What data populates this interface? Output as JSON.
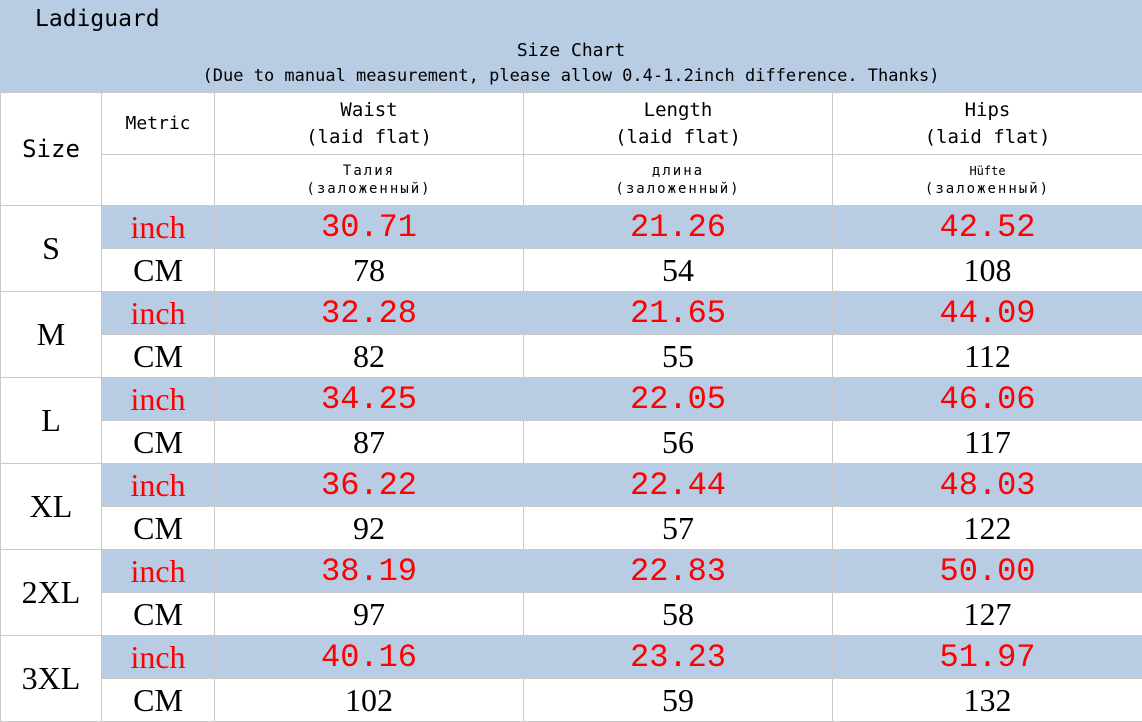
{
  "brand": "Ladiguard",
  "title": "Size Chart",
  "note": "(Due to manual measurement, please allow 0.4-1.2inch difference. Thanks)",
  "header": {
    "size": "Size",
    "metric": "Metric",
    "columns": [
      {
        "name": "Waist",
        "sub": "(laid flat)",
        "ru_name": "Талия",
        "ru_sub": "(заложенный)"
      },
      {
        "name": "Length",
        "sub": "(laid flat)",
        "ru_name": "длина",
        "ru_sub": "(заложенный)"
      },
      {
        "name": "Hips",
        "sub": "(laid flat)",
        "ru_name": "Hüfte",
        "ru_sub": "(заложенный)"
      }
    ]
  },
  "units": {
    "inch": "inch",
    "cm": "CM"
  },
  "colors": {
    "header_band": "#b8cce4",
    "inch_text": "#ff0000",
    "cm_text": "#000000"
  },
  "rows": [
    {
      "size": "S",
      "inch": [
        "30.71",
        "21.26",
        "42.52"
      ],
      "cm": [
        "78",
        "54",
        "108"
      ]
    },
    {
      "size": "M",
      "inch": [
        "32.28",
        "21.65",
        "44.09"
      ],
      "cm": [
        "82",
        "55",
        "112"
      ]
    },
    {
      "size": "L",
      "inch": [
        "34.25",
        "22.05",
        "46.06"
      ],
      "cm": [
        "87",
        "56",
        "117"
      ]
    },
    {
      "size": "XL",
      "inch": [
        "36.22",
        "22.44",
        "48.03"
      ],
      "cm": [
        "92",
        "57",
        "122"
      ]
    },
    {
      "size": "2XL",
      "inch": [
        "38.19",
        "22.83",
        "50.00"
      ],
      "cm": [
        "97",
        "58",
        "127"
      ]
    },
    {
      "size": "3XL",
      "inch": [
        "40.16",
        "23.23",
        "51.97"
      ],
      "cm": [
        "102",
        "59",
        "132"
      ]
    }
  ]
}
